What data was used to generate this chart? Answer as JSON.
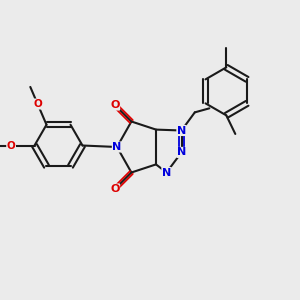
{
  "bg": "#ebebeb",
  "bc": "#1a1a1a",
  "Nc": "#0000dd",
  "Oc": "#dd0000",
  "lw": 1.5,
  "lw2": 1.3,
  "fs": 8.0,
  "figsize": [
    3.0,
    3.0
  ],
  "dpi": 100,
  "xlim": [
    0,
    10
  ],
  "ylim": [
    0,
    10
  ]
}
